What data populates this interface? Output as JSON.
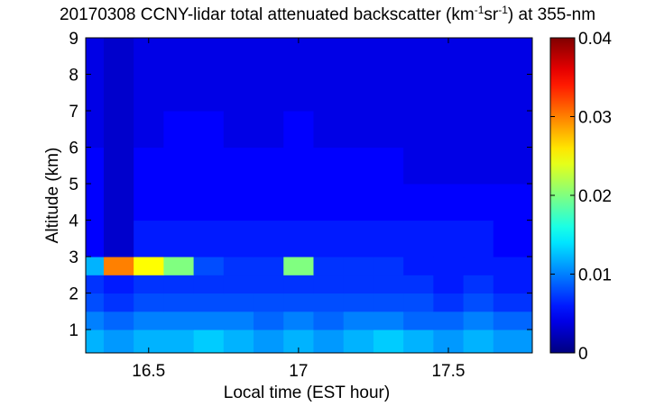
{
  "chart_data": {
    "type": "heatmap",
    "title_parts": [
      "20170308 CCNY-lidar total attenuated backscatter (km",
      "-1",
      "sr",
      "-1",
      ") at 355-nm"
    ],
    "xlabel": "Local time (EST hour)",
    "ylabel": "Altitude (km)",
    "colormap": "jet",
    "xlim": [
      16.29,
      17.78
    ],
    "ylim": [
      0.36,
      9
    ],
    "xticks": [
      16.5,
      17,
      17.5
    ],
    "yticks": [
      1,
      2,
      3,
      4,
      5,
      6,
      7,
      8,
      9
    ],
    "clim": [
      0,
      0.04
    ],
    "cticks": [
      0,
      0.01,
      0.02,
      0.03,
      0.04
    ],
    "x_edges": [
      16.29,
      16.35,
      16.45,
      16.55,
      16.65,
      16.75,
      16.85,
      16.95,
      17.05,
      17.15,
      17.25,
      17.35,
      17.45,
      17.55,
      17.65,
      17.78
    ],
    "y_edges": [
      0.36,
      1,
      1.5,
      2,
      2.5,
      3,
      4,
      5,
      6,
      7,
      8,
      9
    ],
    "z": [
      [
        0.012,
        0.011,
        0.012,
        0.012,
        0.013,
        0.012,
        0.011,
        0.012,
        0.011,
        0.012,
        0.013,
        0.012,
        0.011,
        0.012,
        0.011
      ],
      [
        0.01,
        0.009,
        0.01,
        0.01,
        0.01,
        0.01,
        0.009,
        0.01,
        0.009,
        0.01,
        0.01,
        0.009,
        0.009,
        0.01,
        0.009
      ],
      [
        0.008,
        0.007,
        0.008,
        0.008,
        0.008,
        0.008,
        0.008,
        0.008,
        0.008,
        0.008,
        0.008,
        0.008,
        0.007,
        0.008,
        0.007
      ],
      [
        0.007,
        0.006,
        0.007,
        0.007,
        0.007,
        0.007,
        0.007,
        0.007,
        0.007,
        0.007,
        0.007,
        0.007,
        0.006,
        0.007,
        0.006
      ],
      [
        0.012,
        0.03,
        0.025,
        0.02,
        0.008,
        0.007,
        0.007,
        0.02,
        0.007,
        0.007,
        0.007,
        0.006,
        0.006,
        0.006,
        0.006
      ],
      [
        0.005,
        0.003,
        0.006,
        0.006,
        0.006,
        0.006,
        0.006,
        0.006,
        0.006,
        0.006,
        0.006,
        0.006,
        0.006,
        0.006,
        0.005
      ],
      [
        0.005,
        0.003,
        0.005,
        0.005,
        0.005,
        0.005,
        0.005,
        0.005,
        0.005,
        0.005,
        0.005,
        0.005,
        0.005,
        0.005,
        0.005
      ],
      [
        0.005,
        0.003,
        0.005,
        0.005,
        0.005,
        0.005,
        0.005,
        0.005,
        0.005,
        0.005,
        0.005,
        0.004,
        0.004,
        0.004,
        0.004
      ],
      [
        0.004,
        0.003,
        0.004,
        0.005,
        0.005,
        0.004,
        0.004,
        0.005,
        0.004,
        0.004,
        0.004,
        0.004,
        0.004,
        0.004,
        0.004
      ],
      [
        0.004,
        0.003,
        0.004,
        0.004,
        0.004,
        0.004,
        0.004,
        0.004,
        0.004,
        0.004,
        0.004,
        0.004,
        0.004,
        0.004,
        0.004
      ],
      [
        0.004,
        0.003,
        0.004,
        0.004,
        0.004,
        0.004,
        0.004,
        0.004,
        0.004,
        0.004,
        0.004,
        0.004,
        0.004,
        0.004,
        0.004
      ]
    ]
  }
}
